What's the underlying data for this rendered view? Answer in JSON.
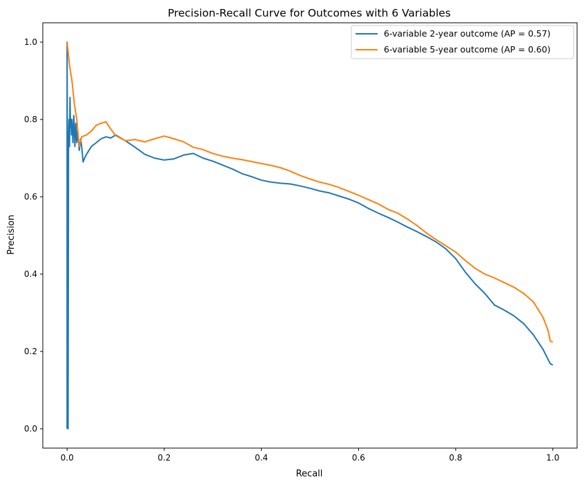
{
  "chart_data": {
    "type": "line",
    "title": "Precision-Recall Curve for Outcomes with 6 Variables",
    "xlabel": "Recall",
    "ylabel": "Precision",
    "xlim": [
      -0.05,
      1.05
    ],
    "ylim": [
      -0.05,
      1.05
    ],
    "xticks": [
      0.0,
      0.2,
      0.4,
      0.6,
      0.8,
      1.0
    ],
    "xtick_labels": [
      "0.0",
      "0.2",
      "0.4",
      "0.6",
      "0.8",
      "1.0"
    ],
    "yticks": [
      0.0,
      0.2,
      0.4,
      0.6,
      0.8,
      1.0
    ],
    "ytick_labels": [
      "0.0",
      "0.2",
      "0.4",
      "0.6",
      "0.8",
      "1.0"
    ],
    "grid": false,
    "legend_position": "top-right",
    "series": [
      {
        "name": "6-variable 2-year outcome (AP = 0.57)",
        "color": "#1f77b4",
        "points": [
          [
            0.0,
            0.0
          ],
          [
            0.0,
            1.0
          ],
          [
            0.002,
            0.0
          ],
          [
            0.003,
            0.75
          ],
          [
            0.004,
            0.8
          ],
          [
            0.005,
            0.73
          ],
          [
            0.006,
            0.857
          ],
          [
            0.007,
            0.78
          ],
          [
            0.008,
            0.8
          ],
          [
            0.009,
            0.76
          ],
          [
            0.01,
            0.8
          ],
          [
            0.012,
            0.74
          ],
          [
            0.014,
            0.81
          ],
          [
            0.016,
            0.73
          ],
          [
            0.018,
            0.79
          ],
          [
            0.02,
            0.74
          ],
          [
            0.022,
            0.77
          ],
          [
            0.025,
            0.72
          ],
          [
            0.028,
            0.75
          ],
          [
            0.03,
            0.73
          ],
          [
            0.033,
            0.69
          ],
          [
            0.036,
            0.7
          ],
          [
            0.04,
            0.71
          ],
          [
            0.045,
            0.72
          ],
          [
            0.05,
            0.73
          ],
          [
            0.06,
            0.74
          ],
          [
            0.07,
            0.75
          ],
          [
            0.08,
            0.755
          ],
          [
            0.09,
            0.752
          ],
          [
            0.1,
            0.76
          ],
          [
            0.12,
            0.745
          ],
          [
            0.14,
            0.728
          ],
          [
            0.16,
            0.71
          ],
          [
            0.18,
            0.7
          ],
          [
            0.2,
            0.695
          ],
          [
            0.22,
            0.698
          ],
          [
            0.24,
            0.708
          ],
          [
            0.26,
            0.712
          ],
          [
            0.28,
            0.7
          ],
          [
            0.3,
            0.692
          ],
          [
            0.32,
            0.682
          ],
          [
            0.34,
            0.672
          ],
          [
            0.36,
            0.66
          ],
          [
            0.38,
            0.652
          ],
          [
            0.4,
            0.643
          ],
          [
            0.42,
            0.638
          ],
          [
            0.44,
            0.635
          ],
          [
            0.46,
            0.633
          ],
          [
            0.48,
            0.628
          ],
          [
            0.5,
            0.622
          ],
          [
            0.52,
            0.615
          ],
          [
            0.54,
            0.61
          ],
          [
            0.56,
            0.602
          ],
          [
            0.58,
            0.594
          ],
          [
            0.6,
            0.584
          ],
          [
            0.62,
            0.57
          ],
          [
            0.64,
            0.558
          ],
          [
            0.66,
            0.547
          ],
          [
            0.68,
            0.535
          ],
          [
            0.7,
            0.522
          ],
          [
            0.72,
            0.51
          ],
          [
            0.74,
            0.497
          ],
          [
            0.76,
            0.483
          ],
          [
            0.78,
            0.465
          ],
          [
            0.8,
            0.44
          ],
          [
            0.82,
            0.405
          ],
          [
            0.84,
            0.375
          ],
          [
            0.86,
            0.35
          ],
          [
            0.88,
            0.32
          ],
          [
            0.9,
            0.307
          ],
          [
            0.92,
            0.292
          ],
          [
            0.94,
            0.272
          ],
          [
            0.96,
            0.243
          ],
          [
            0.98,
            0.205
          ],
          [
            0.99,
            0.18
          ],
          [
            0.995,
            0.168
          ],
          [
            1.0,
            0.165
          ]
        ]
      },
      {
        "name": "6-variable 5-year outcome (AP = 0.60)",
        "color": "#ff7f0e",
        "points": [
          [
            0.0,
            1.0
          ],
          [
            0.005,
            0.94
          ],
          [
            0.01,
            0.9
          ],
          [
            0.015,
            0.84
          ],
          [
            0.02,
            0.8
          ],
          [
            0.025,
            0.73
          ],
          [
            0.03,
            0.755
          ],
          [
            0.04,
            0.76
          ],
          [
            0.05,
            0.77
          ],
          [
            0.06,
            0.785
          ],
          [
            0.07,
            0.79
          ],
          [
            0.08,
            0.794
          ],
          [
            0.09,
            0.775
          ],
          [
            0.1,
            0.758
          ],
          [
            0.12,
            0.745
          ],
          [
            0.14,
            0.748
          ],
          [
            0.16,
            0.742
          ],
          [
            0.18,
            0.75
          ],
          [
            0.2,
            0.757
          ],
          [
            0.22,
            0.75
          ],
          [
            0.24,
            0.742
          ],
          [
            0.26,
            0.728
          ],
          [
            0.28,
            0.722
          ],
          [
            0.3,
            0.712
          ],
          [
            0.32,
            0.705
          ],
          [
            0.34,
            0.7
          ],
          [
            0.36,
            0.696
          ],
          [
            0.38,
            0.691
          ],
          [
            0.4,
            0.686
          ],
          [
            0.42,
            0.681
          ],
          [
            0.44,
            0.675
          ],
          [
            0.46,
            0.666
          ],
          [
            0.48,
            0.655
          ],
          [
            0.5,
            0.646
          ],
          [
            0.52,
            0.638
          ],
          [
            0.54,
            0.632
          ],
          [
            0.56,
            0.624
          ],
          [
            0.58,
            0.614
          ],
          [
            0.6,
            0.604
          ],
          [
            0.62,
            0.593
          ],
          [
            0.64,
            0.582
          ],
          [
            0.66,
            0.568
          ],
          [
            0.68,
            0.558
          ],
          [
            0.7,
            0.543
          ],
          [
            0.72,
            0.526
          ],
          [
            0.74,
            0.506
          ],
          [
            0.76,
            0.489
          ],
          [
            0.78,
            0.473
          ],
          [
            0.8,
            0.457
          ],
          [
            0.82,
            0.435
          ],
          [
            0.84,
            0.415
          ],
          [
            0.86,
            0.4
          ],
          [
            0.88,
            0.39
          ],
          [
            0.9,
            0.378
          ],
          [
            0.92,
            0.366
          ],
          [
            0.94,
            0.35
          ],
          [
            0.96,
            0.328
          ],
          [
            0.98,
            0.288
          ],
          [
            0.99,
            0.255
          ],
          [
            0.995,
            0.226
          ],
          [
            1.0,
            0.225
          ]
        ]
      }
    ]
  }
}
